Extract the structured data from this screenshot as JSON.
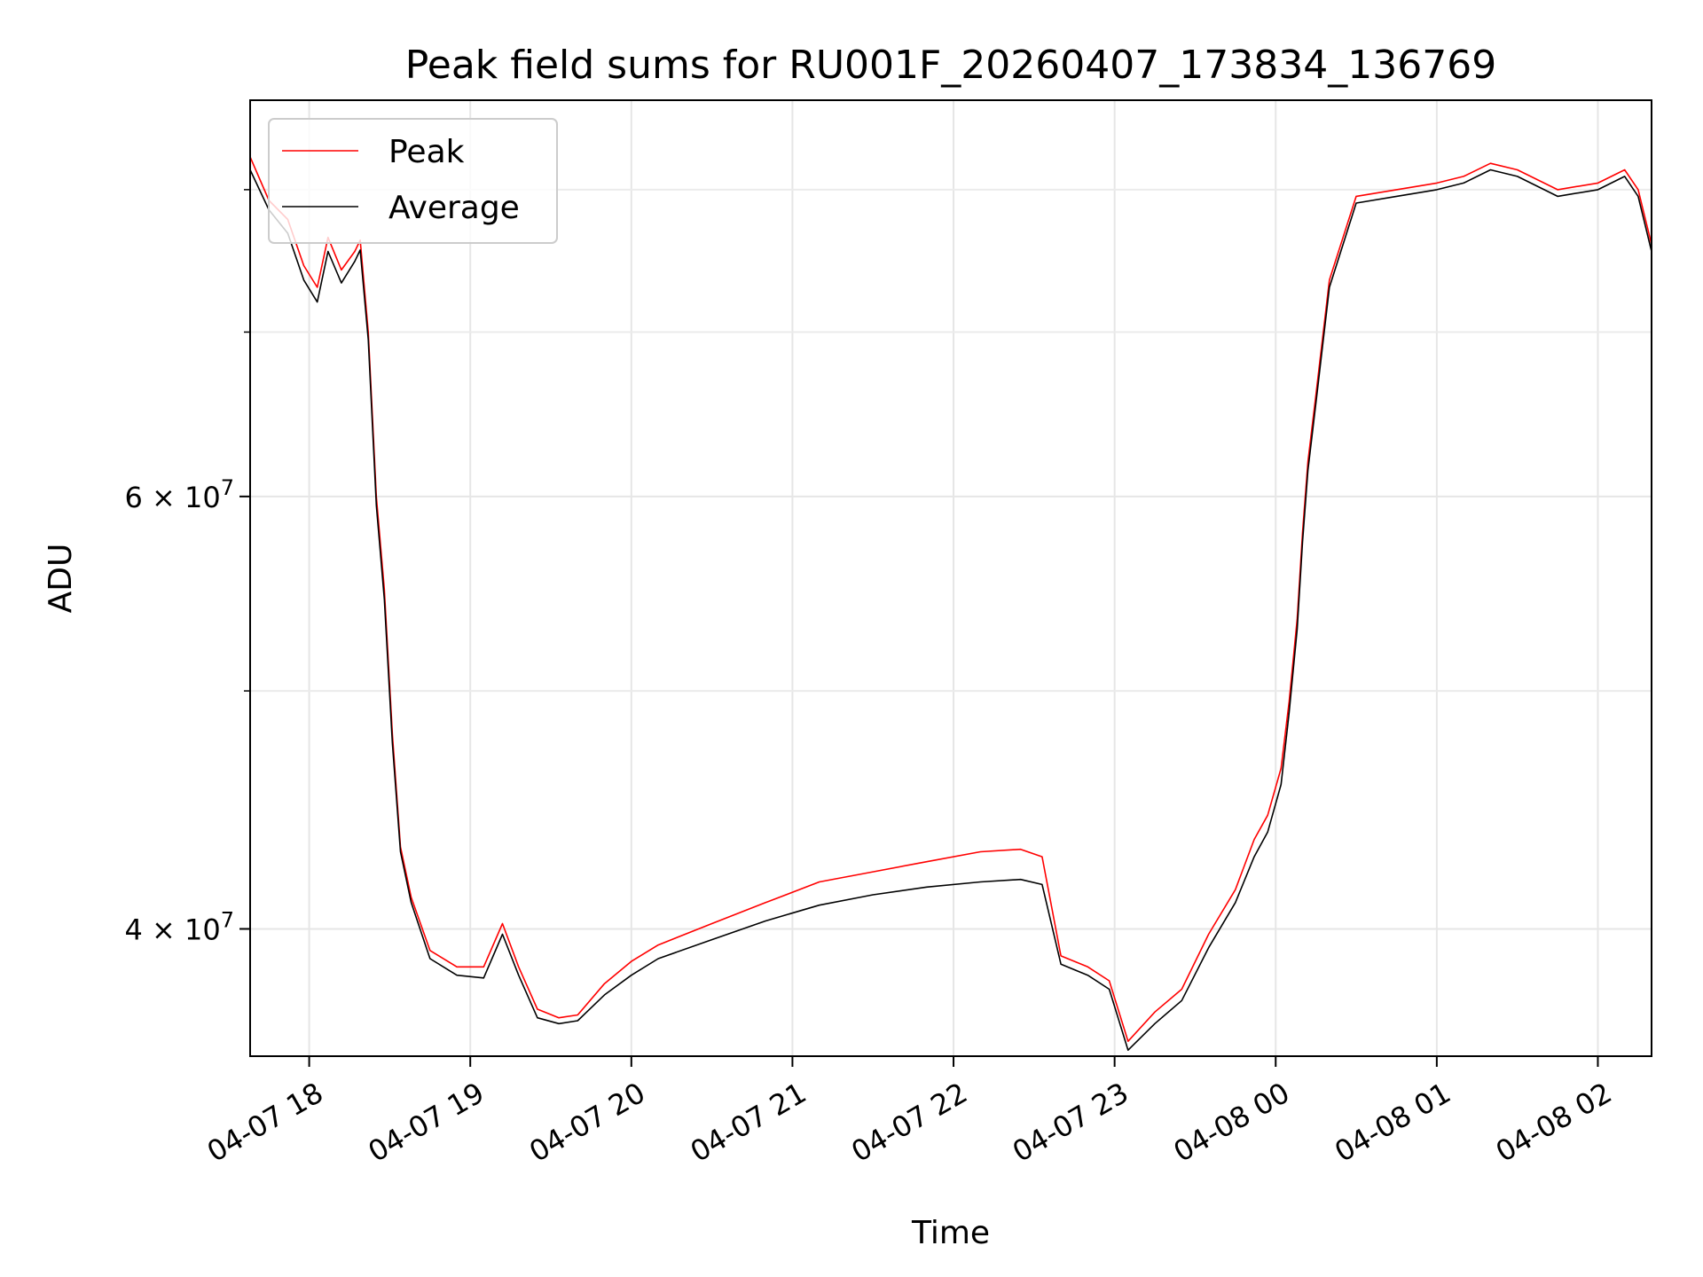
{
  "chart_data": {
    "type": "line",
    "title": "Peak field sums for RU001F_20260407_173834_136769",
    "xlabel": "Time",
    "ylabel": "ADU",
    "yscale": "log",
    "ylim": [
      35500000,
      87000000
    ],
    "xlim": [
      "2026-04-07T17:38",
      "2026-04-08T02:20"
    ],
    "grid": true,
    "legend": {
      "location": "upper-left",
      "entries": [
        "Peak",
        "Average"
      ]
    },
    "x_ticks": [
      {
        "t": "2026-04-07T18:00",
        "label": "04-07 18"
      },
      {
        "t": "2026-04-07T19:00",
        "label": "04-07 19"
      },
      {
        "t": "2026-04-07T20:00",
        "label": "04-07 20"
      },
      {
        "t": "2026-04-07T21:00",
        "label": "04-07 21"
      },
      {
        "t": "2026-04-07T22:00",
        "label": "04-07 22"
      },
      {
        "t": "2026-04-07T23:00",
        "label": "04-07 23"
      },
      {
        "t": "2026-04-08T00:00",
        "label": "04-08 00"
      },
      {
        "t": "2026-04-08T01:00",
        "label": "04-08 01"
      },
      {
        "t": "2026-04-08T02:00",
        "label": "04-08 02"
      }
    ],
    "y_ticks": [
      {
        "value": 40000000,
        "mantissa": "4",
        "exponent": "7"
      },
      {
        "value": 60000000,
        "mantissa": "6",
        "exponent": "7"
      }
    ],
    "y_minor_ticks": [
      50000000,
      70000000,
      80000000
    ],
    "series": [
      {
        "name": "Peak",
        "color": "#ff0000",
        "x": [
          "2026-04-07T17:38",
          "2026-04-07T17:45",
          "2026-04-07T17:52",
          "2026-04-07T17:58",
          "2026-04-07T18:03",
          "2026-04-07T18:07",
          "2026-04-07T18:12",
          "2026-04-07T18:17",
          "2026-04-07T18:19",
          "2026-04-07T18:22",
          "2026-04-07T18:25",
          "2026-04-07T18:28",
          "2026-04-07T18:31",
          "2026-04-07T18:34",
          "2026-04-07T18:38",
          "2026-04-07T18:45",
          "2026-04-07T18:55",
          "2026-04-07T19:05",
          "2026-04-07T19:12",
          "2026-04-07T19:18",
          "2026-04-07T19:25",
          "2026-04-07T19:33",
          "2026-04-07T19:40",
          "2026-04-07T19:50",
          "2026-04-07T20:00",
          "2026-04-07T20:10",
          "2026-04-07T20:30",
          "2026-04-07T20:50",
          "2026-04-07T21:10",
          "2026-04-07T21:30",
          "2026-04-07T21:50",
          "2026-04-07T22:10",
          "2026-04-07T22:25",
          "2026-04-07T22:33",
          "2026-04-07T22:40",
          "2026-04-07T22:50",
          "2026-04-07T22:58",
          "2026-04-07T23:05",
          "2026-04-07T23:15",
          "2026-04-07T23:25",
          "2026-04-07T23:35",
          "2026-04-07T23:45",
          "2026-04-07T23:52",
          "2026-04-07T23:57",
          "2026-04-08T00:02",
          "2026-04-08T00:05",
          "2026-04-08T00:08",
          "2026-04-08T00:10",
          "2026-04-08T00:12",
          "2026-04-08T00:15",
          "2026-04-08T00:20",
          "2026-04-08T00:30",
          "2026-04-08T00:45",
          "2026-04-08T01:00",
          "2026-04-08T01:10",
          "2026-04-08T01:20",
          "2026-04-08T01:30",
          "2026-04-08T01:45",
          "2026-04-08T02:00",
          "2026-04-08T02:10",
          "2026-04-08T02:15",
          "2026-04-08T02:20"
        ],
        "y": [
          82500000,
          79200000,
          77800000,
          74500000,
          73000000,
          76500000,
          74200000,
          75500000,
          76300000,
          70000000,
          60000000,
          55000000,
          48000000,
          43200000,
          41200000,
          39200000,
          38600000,
          38600000,
          40200000,
          38600000,
          37100000,
          36800000,
          36900000,
          38000000,
          38800000,
          39400000,
          40200000,
          41000000,
          41800000,
          42200000,
          42600000,
          43000000,
          43100000,
          42800000,
          39000000,
          38600000,
          38100000,
          36000000,
          37000000,
          37800000,
          39800000,
          41500000,
          43500000,
          44500000,
          46500000,
          49500000,
          53500000,
          58000000,
          62000000,
          66000000,
          73500000,
          79500000,
          80000000,
          80500000,
          81000000,
          82000000,
          81500000,
          80000000,
          80500000,
          81500000,
          80000000,
          76000000
        ]
      },
      {
        "name": "Average",
        "color": "#000000",
        "x": [
          "2026-04-07T17:38",
          "2026-04-07T17:45",
          "2026-04-07T17:52",
          "2026-04-07T17:58",
          "2026-04-07T18:03",
          "2026-04-07T18:07",
          "2026-04-07T18:12",
          "2026-04-07T18:17",
          "2026-04-07T18:19",
          "2026-04-07T18:22",
          "2026-04-07T18:25",
          "2026-04-07T18:28",
          "2026-04-07T18:31",
          "2026-04-07T18:34",
          "2026-04-07T18:38",
          "2026-04-07T18:45",
          "2026-04-07T18:55",
          "2026-04-07T19:05",
          "2026-04-07T19:12",
          "2026-04-07T19:18",
          "2026-04-07T19:25",
          "2026-04-07T19:33",
          "2026-04-07T19:40",
          "2026-04-07T19:50",
          "2026-04-07T20:00",
          "2026-04-07T20:10",
          "2026-04-07T20:30",
          "2026-04-07T20:50",
          "2026-04-07T21:10",
          "2026-04-07T21:30",
          "2026-04-07T21:50",
          "2026-04-07T22:10",
          "2026-04-07T22:25",
          "2026-04-07T22:33",
          "2026-04-07T22:40",
          "2026-04-07T22:50",
          "2026-04-07T22:58",
          "2026-04-07T23:05",
          "2026-04-07T23:15",
          "2026-04-07T23:25",
          "2026-04-07T23:35",
          "2026-04-07T23:45",
          "2026-04-07T23:52",
          "2026-04-07T23:57",
          "2026-04-08T00:02",
          "2026-04-08T00:05",
          "2026-04-08T00:08",
          "2026-04-08T00:10",
          "2026-04-08T00:12",
          "2026-04-08T00:15",
          "2026-04-08T00:20",
          "2026-04-08T00:30",
          "2026-04-08T00:45",
          "2026-04-08T01:00",
          "2026-04-08T01:10",
          "2026-04-08T01:20",
          "2026-04-08T01:30",
          "2026-04-08T01:45",
          "2026-04-08T02:00",
          "2026-04-08T02:10",
          "2026-04-08T02:15",
          "2026-04-08T02:20"
        ],
        "y": [
          81500000,
          78500000,
          76800000,
          73500000,
          72000000,
          75500000,
          73300000,
          74800000,
          75600000,
          69500000,
          59500000,
          54500000,
          47600000,
          43000000,
          41000000,
          38900000,
          38300000,
          38200000,
          39800000,
          38300000,
          36800000,
          36600000,
          36700000,
          37600000,
          38300000,
          38900000,
          39600000,
          40300000,
          40900000,
          41300000,
          41600000,
          41800000,
          41900000,
          41700000,
          38700000,
          38300000,
          37800000,
          35700000,
          36600000,
          37400000,
          39300000,
          41000000,
          42800000,
          43800000,
          45800000,
          49000000,
          53000000,
          57500000,
          61500000,
          65500000,
          73000000,
          79000000,
          79500000,
          80000000,
          80500000,
          81500000,
          81000000,
          79500000,
          80000000,
          81000000,
          79500000,
          75500000
        ]
      }
    ]
  }
}
